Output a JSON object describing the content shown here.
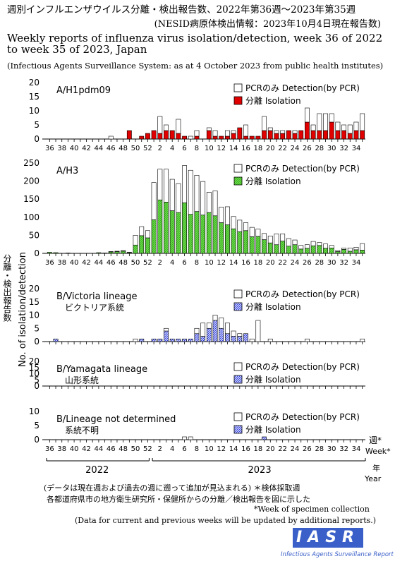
{
  "title_jp": "週別インフルエンザウイルス分離・検出報告数、2022年第36週〜2023年第35週",
  "title_jp2": "(NESID病原体検出情報：2023年10月4日現在報告数)",
  "title_en": "Weekly reports of influenza virus isolation/detection, week 36 of 2022 to week 35 of 2023, Japan",
  "title_src": "(Infectious Agents Surveillance System: as at 4 October 2023 from public health institutes)",
  "colors": {
    "isolation_h1": "#e00000",
    "isolation_h3": "#66dd44",
    "isolation_b": "#3355dd",
    "pcr": "#ffffff"
  },
  "chart_data": {
    "type": "bar",
    "stacked": true,
    "weeks": [
      36,
      37,
      38,
      39,
      40,
      41,
      42,
      43,
      44,
      45,
      46,
      47,
      48,
      49,
      50,
      51,
      52,
      1,
      2,
      3,
      4,
      5,
      6,
      7,
      8,
      9,
      10,
      11,
      12,
      13,
      14,
      15,
      16,
      17,
      18,
      19,
      20,
      21,
      22,
      23,
      24,
      25,
      26,
      27,
      28,
      29,
      30,
      31,
      32,
      33,
      34,
      35
    ],
    "x_ticks": [
      "36",
      "38",
      "40",
      "42",
      "44",
      "46",
      "48",
      "50",
      "52",
      "2",
      "4",
      "6",
      "8",
      "10",
      "12",
      "14",
      "16",
      "18",
      "20",
      "22",
      "24",
      "26",
      "28",
      "30",
      "32",
      "34"
    ],
    "year_labels": [
      "2022",
      "2023"
    ],
    "year_label_jp": "年",
    "year_label_en": "Year",
    "week_label_jp": "週*",
    "week_label_en": "Week*",
    "ylabel_jp": "分離・検出報告数",
    "ylabel_en": "No. of isolation/detection",
    "panels": [
      {
        "name": "A/H1pdm09",
        "subname": "",
        "ylim": [
          0,
          20
        ],
        "yticks": [
          0,
          5,
          10,
          15,
          20
        ],
        "legend_pcr": "PCRのみ Detection(by PCR)",
        "legend_iso": "分離  Isolation",
        "isolation": [
          0,
          0,
          0,
          0,
          0,
          0,
          0,
          0,
          0,
          0,
          0,
          0,
          0,
          3,
          0,
          1,
          2,
          3,
          2,
          3,
          3,
          2,
          1,
          0,
          1,
          0,
          3,
          1,
          1,
          1,
          2,
          4,
          1,
          1,
          1,
          3,
          3,
          2,
          2,
          3,
          2,
          3,
          6,
          3,
          3,
          3,
          6,
          3,
          3,
          2,
          3,
          3
        ],
        "pcr": [
          0,
          0,
          0,
          0,
          0,
          0,
          0,
          0,
          0,
          0,
          1,
          0,
          0,
          0,
          0,
          0,
          0,
          0,
          6,
          2,
          0,
          5,
          0,
          1,
          2,
          0,
          1,
          2,
          0,
          2,
          1,
          0,
          4,
          0,
          0,
          5,
          1,
          1,
          1,
          0,
          1,
          0,
          5,
          2,
          6,
          6,
          3,
          3,
          2,
          3,
          3,
          6
        ]
      },
      {
        "name": "A/H3",
        "subname": "",
        "ylim": [
          0,
          250
        ],
        "yticks": [
          0,
          50,
          100,
          150,
          200,
          250
        ],
        "legend_pcr": "PCRのみ Detection(by PCR)",
        "legend_iso": "分離  Isolation",
        "isolation": [
          3,
          2,
          0,
          1,
          0,
          0,
          0,
          0,
          2,
          1,
          4,
          5,
          6,
          2,
          23,
          49,
          43,
          93,
          148,
          142,
          118,
          113,
          140,
          108,
          116,
          106,
          113,
          104,
          85,
          79,
          68,
          60,
          63,
          46,
          47,
          38,
          29,
          24,
          34,
          20,
          24,
          12,
          14,
          21,
          22,
          14,
          15,
          5,
          11,
          6,
          10,
          9
        ],
        "pcr": [
          0,
          0,
          0,
          0,
          0,
          0,
          0,
          0,
          0,
          0,
          1,
          1,
          2,
          1,
          27,
          25,
          20,
          103,
          85,
          91,
          87,
          80,
          103,
          122,
          100,
          93,
          56,
          69,
          43,
          50,
          34,
          32,
          22,
          26,
          20,
          17,
          19,
          30,
          20,
          21,
          13,
          10,
          10,
          12,
          8,
          12,
          7,
          3,
          4,
          9,
          7,
          18
        ]
      },
      {
        "name": "B/Victoria lineage",
        "subname": "ビクトリア系統",
        "ylim": [
          0,
          20
        ],
        "yticks": [
          0,
          5,
          10,
          15,
          20
        ],
        "legend_pcr": "PCRのみ Detection(by PCR)",
        "legend_iso": "分離  Isolation",
        "isolation": [
          0,
          1,
          0,
          0,
          0,
          0,
          0,
          0,
          0,
          0,
          0,
          0,
          0,
          0,
          0,
          1,
          0,
          1,
          1,
          4,
          1,
          1,
          1,
          1,
          3,
          2,
          5,
          8,
          5,
          3,
          2,
          2,
          3,
          0,
          0,
          0,
          0,
          0,
          0,
          0,
          0,
          0,
          0,
          0,
          0,
          0,
          0,
          0,
          0,
          0,
          0,
          0
        ],
        "pcr": [
          0,
          0,
          0,
          0,
          0,
          0,
          0,
          0,
          0,
          0,
          0,
          0,
          0,
          0,
          1,
          0,
          0,
          0,
          0,
          1,
          0,
          0,
          0,
          0,
          2,
          5,
          2,
          2,
          4,
          4,
          2,
          1,
          0,
          1,
          8,
          0,
          1,
          0,
          0,
          0,
          0,
          0,
          1,
          0,
          0,
          0,
          0,
          0,
          0,
          0,
          0,
          1
        ]
      },
      {
        "name": "B/Yamagata lineage",
        "subname": "山形系統",
        "ylim": [
          0,
          20
        ],
        "yticks": [
          0,
          5,
          10,
          15,
          20
        ],
        "legend_pcr": "PCRのみ Detection(by PCR)",
        "legend_iso": "分離  Isolation",
        "isolation": [
          0,
          0,
          0,
          0,
          0,
          0,
          0,
          0,
          0,
          0,
          0,
          0,
          0,
          0,
          0,
          0,
          0,
          0,
          0,
          0,
          0,
          0,
          0,
          0,
          0,
          0,
          0,
          0,
          0,
          0,
          0,
          0,
          0,
          0,
          0,
          0,
          0,
          0,
          0,
          0,
          0,
          0,
          0,
          0,
          0,
          0,
          0,
          0,
          0,
          0,
          0,
          0
        ],
        "pcr": [
          0,
          0,
          0,
          0,
          0,
          0,
          0,
          0,
          0,
          0,
          0,
          0,
          0,
          0,
          0,
          0,
          0,
          0,
          0,
          0,
          0,
          0,
          0,
          0,
          0,
          0,
          0,
          0,
          0,
          0,
          0,
          0,
          0,
          0,
          0,
          0,
          0,
          0,
          0,
          0,
          0,
          0,
          0,
          0,
          0,
          0,
          0,
          0,
          0,
          0,
          0,
          0
        ]
      },
      {
        "name": "B/Lineage not determined",
        "subname": "系統不明",
        "ylim": [
          0,
          10
        ],
        "yticks": [
          0,
          5,
          10
        ],
        "legend_pcr": "PCRのみ Detection(by PCR)",
        "legend_iso": "分離  Isolation",
        "isolation": [
          0,
          0,
          0,
          0,
          0,
          0,
          0,
          0,
          0,
          0,
          0,
          0,
          0,
          0,
          0,
          0,
          0,
          0,
          0,
          0,
          0,
          0,
          0,
          0,
          0,
          0,
          0,
          0,
          0,
          0,
          0,
          0,
          0,
          0,
          0,
          1,
          0,
          0,
          0,
          0,
          0,
          0,
          0,
          0,
          0,
          0,
          0,
          0,
          0,
          0,
          0,
          0
        ],
        "pcr": [
          0,
          0,
          0,
          0,
          0,
          0,
          0,
          0,
          0,
          0,
          0,
          0,
          0,
          0,
          0,
          0,
          0,
          0,
          0,
          0,
          0,
          0,
          1,
          1,
          0,
          0,
          0,
          0,
          0,
          0,
          0,
          0,
          0,
          0,
          0,
          0,
          0,
          0,
          0,
          0,
          0,
          0,
          0,
          0,
          0,
          0,
          0,
          0,
          0,
          0,
          0,
          0
        ]
      }
    ]
  },
  "footnotes": {
    "jp1": "(データは現在週および過去の週に遡って追加が見込まれる)  ＊検体採取週",
    "jp2": "各都道府県市の地方衛生研究所・保健所からの分離／検出報告を図に示した",
    "en1": "*Week of specimen collection",
    "en2": "(Data for current and previous weeks will be updated  by additional reports.)"
  },
  "logo": {
    "text": "IASR",
    "sub": "Infectious Agents Surveillance Report"
  }
}
